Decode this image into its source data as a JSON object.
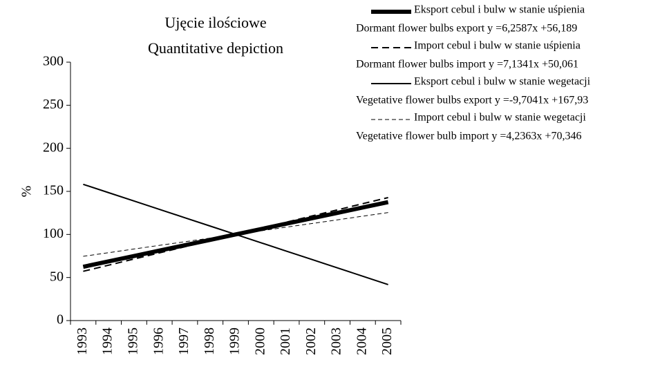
{
  "chart_data": {
    "type": "line",
    "title": "Ujęcie ilościowe",
    "subtitle": "Quantitative depiction",
    "y_label": "%",
    "categories": [
      "1993",
      "1994",
      "1995",
      "1996",
      "1997",
      "1998",
      "1999",
      "2000",
      "2001",
      "2002",
      "2003",
      "2004",
      "2005"
    ],
    "ylim": [
      0,
      300
    ],
    "yticks": [
      0,
      50,
      100,
      150,
      200,
      250,
      300
    ],
    "series": [
      {
        "name": "Eksport cebul i bulw w stanie uśpienia",
        "equation": "Dormant flower bulbs export y =6,2587x +56,189",
        "color": "#000000",
        "width": 6,
        "dash": "none",
        "values": [
          62.45,
          68.71,
          74.97,
          81.22,
          87.48,
          93.74,
          100.0,
          106.26,
          112.52,
          118.78,
          125.03,
          131.29,
          137.55
        ]
      },
      {
        "name": "Import cebul i bulw w stanie uśpienia",
        "equation": "Dormant flower bulbs import y =7,1341x +50,061",
        "color": "#000000",
        "width": 2,
        "dash": "10 6",
        "values": [
          57.2,
          64.3,
          71.5,
          78.6,
          85.7,
          92.9,
          100.0,
          107.1,
          114.3,
          121.4,
          128.5,
          135.7,
          142.8
        ]
      },
      {
        "name": "Eksport cebul i bulw w stanie wegetacji",
        "equation": "Vegetative flower bulbs export y =-9,7041x +167,93",
        "color": "#000000",
        "width": 2,
        "dash": "none",
        "values": [
          158.2,
          148.5,
          138.8,
          129.1,
          119.4,
          109.7,
          100.0,
          90.3,
          80.6,
          70.9,
          61.2,
          51.5,
          41.8
        ]
      },
      {
        "name": "Import cebul i bulw w stanie wegetacji",
        "equation": "Vegetative flower bulb import y =4,2363x +70,346",
        "color": "#000000",
        "width": 1,
        "dash": "6 4",
        "values": [
          74.6,
          78.8,
          83.1,
          87.3,
          91.5,
          95.8,
          100.0,
          104.2,
          108.5,
          112.7,
          116.9,
          121.2,
          125.4
        ]
      }
    ]
  }
}
